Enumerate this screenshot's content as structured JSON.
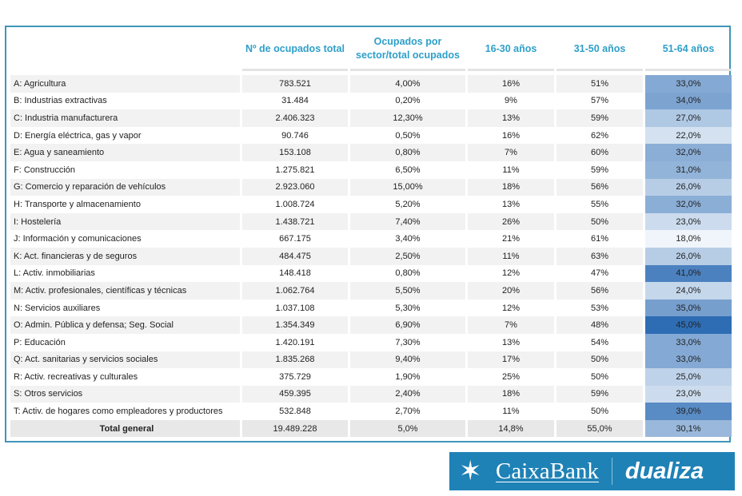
{
  "headers": [
    "",
    "Nº de ocupados total",
    "Ocupados por sector/total ocupados",
    "16-30 años",
    "31-50 años",
    "51-64 años"
  ],
  "rows": [
    [
      "A: Agricultura",
      "783.521",
      "4,00%",
      "16%",
      "51%",
      "33,0%"
    ],
    [
      "B: Industrias extractivas",
      "31.484",
      "0,20%",
      "9%",
      "57%",
      "34,0%"
    ],
    [
      "C: Industria manufacturera",
      "2.406.323",
      "12,30%",
      "13%",
      "59%",
      "27,0%"
    ],
    [
      "D: Energía eléctrica, gas y vapor",
      "90.746",
      "0,50%",
      "16%",
      "62%",
      "22,0%"
    ],
    [
      "E: Agua y saneamiento",
      "153.108",
      "0,80%",
      "7%",
      "60%",
      "32,0%"
    ],
    [
      "F: Construcción",
      "1.275.821",
      "6,50%",
      "11%",
      "59%",
      "31,0%"
    ],
    [
      "G: Comercio y reparación de vehículos",
      "2.923.060",
      "15,00%",
      "18%",
      "56%",
      "26,0%"
    ],
    [
      "H: Transporte y almacenamiento",
      "1.008.724",
      "5,20%",
      "13%",
      "55%",
      "32,0%"
    ],
    [
      "I: Hostelería",
      "1.438.721",
      "7,40%",
      "26%",
      "50%",
      "23,0%"
    ],
    [
      "J: Información y comunicaciones",
      "667.175",
      "3,40%",
      "21%",
      "61%",
      "18,0%"
    ],
    [
      "K: Act. financieras y de seguros",
      "484.475",
      "2,50%",
      "11%",
      "63%",
      "26,0%"
    ],
    [
      "L: Activ. inmobiliarias",
      "148.418",
      "0,80%",
      "12%",
      "47%",
      "41,0%"
    ],
    [
      "M: Activ. profesionales, científicas y técnicas",
      "1.062.764",
      "5,50%",
      "20%",
      "56%",
      "24,0%"
    ],
    [
      "N: Servicios auxiliares",
      "1.037.108",
      "5,30%",
      "12%",
      "53%",
      "35,0%"
    ],
    [
      "O: Admin. Pública y defensa; Seg. Social",
      "1.354.349",
      "6,90%",
      "7%",
      "48%",
      "45,0%"
    ],
    [
      "P: Educación",
      "1.420.191",
      "7,30%",
      "13%",
      "54%",
      "33,0%"
    ],
    [
      "Q: Act. sanitarias y servicios sociales",
      "1.835.268",
      "9,40%",
      "17%",
      "50%",
      "33,0%"
    ],
    [
      "R: Activ. recreativas y culturales",
      "375.729",
      "1,90%",
      "25%",
      "50%",
      "25,0%"
    ],
    [
      "S: Otros servicios",
      "459.395",
      "2,40%",
      "18%",
      "59%",
      "23,0%"
    ],
    [
      "T: Activ. de hogares como empleadores y productores",
      "532.848",
      "2,70%",
      "11%",
      "50%",
      "39,0%"
    ]
  ],
  "total": [
    "Total general",
    "19.489.228",
    "5,0%",
    "14,8%",
    "55,0%",
    "30,1%"
  ],
  "logo": {
    "brand": "CaixaBank",
    "product": "dualiza"
  },
  "colors": {
    "header": "#2e9fc9",
    "scale_low": "#f0f5fb",
    "scale_high": "#2e6db4"
  }
}
